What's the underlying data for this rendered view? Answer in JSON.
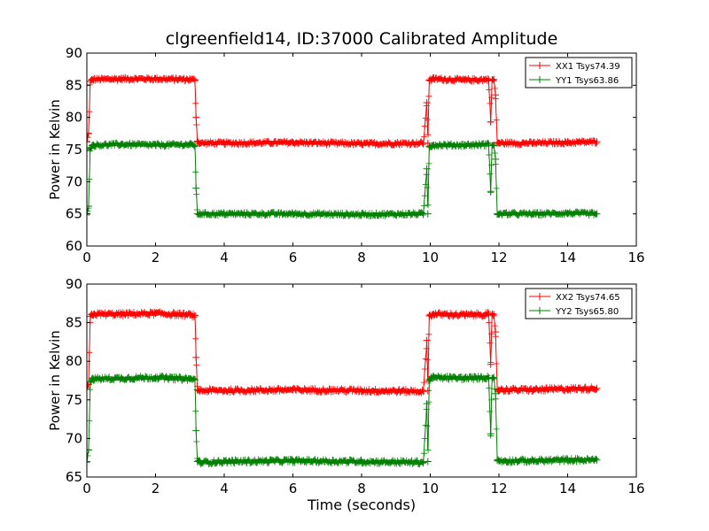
{
  "figure": {
    "title": "clgreenfield14, ID:37000 Calibrated Amplitude",
    "xlabel": "Time (seconds)"
  },
  "colors": {
    "xx": "#ff0000",
    "yy": "#008000",
    "frame": "#000000",
    "background": "#ffffff"
  },
  "chart_data": [
    {
      "type": "line",
      "title": "clgreenfield14, ID:37000 Calibrated Amplitude",
      "xlabel": "",
      "ylabel": "Power in Kelvin",
      "xlim": [
        0,
        16
      ],
      "ylim": [
        60,
        90
      ],
      "xticks": [
        0,
        2,
        4,
        6,
        8,
        10,
        12,
        14,
        16
      ],
      "yticks": [
        60,
        65,
        70,
        75,
        80,
        85,
        90
      ],
      "grid": false,
      "legend": "top-right",
      "series": [
        {
          "name": "XX1 Tsys74.39",
          "color": "#ff0000",
          "marker": "+",
          "x": [
            0.0,
            0.05,
            0.1,
            0.15,
            0.2,
            1.0,
            2.0,
            3.0,
            3.15,
            3.18,
            3.22,
            3.3,
            4.0,
            6.0,
            8.0,
            9.8,
            9.9,
            9.93,
            9.97,
            10.05,
            10.1,
            11.0,
            11.7,
            11.76,
            11.8,
            11.85,
            11.9,
            11.95,
            12.0,
            13.0,
            14.0,
            14.85
          ],
          "y": [
            76.2,
            77.5,
            85.6,
            85.8,
            85.9,
            86.0,
            86.0,
            85.9,
            85.8,
            80.0,
            76.2,
            76.0,
            76.0,
            76.1,
            75.9,
            76.0,
            82.3,
            76.0,
            85.8,
            85.9,
            86.0,
            85.8,
            85.9,
            79.3,
            85.8,
            85.9,
            83.5,
            76.1,
            76.0,
            76.0,
            76.1,
            76.2
          ]
        },
        {
          "name": "YY1 Tsys63.86",
          "color": "#008000",
          "marker": "+",
          "x": [
            0.0,
            0.05,
            0.1,
            0.15,
            0.2,
            1.0,
            2.0,
            3.0,
            3.15,
            3.18,
            3.22,
            3.3,
            4.0,
            6.0,
            8.0,
            9.8,
            9.9,
            9.93,
            9.97,
            10.05,
            10.1,
            11.0,
            11.7,
            11.76,
            11.8,
            11.85,
            11.9,
            11.95,
            12.0,
            13.0,
            14.0,
            14.85
          ],
          "y": [
            65.0,
            66.2,
            75.3,
            75.6,
            75.7,
            75.8,
            75.7,
            75.8,
            75.6,
            69.0,
            65.0,
            65.0,
            65.0,
            65.0,
            64.9,
            65.0,
            72.0,
            65.0,
            75.5,
            75.6,
            75.7,
            75.7,
            75.8,
            68.5,
            75.6,
            75.7,
            73.5,
            65.0,
            65.0,
            65.0,
            65.1,
            65.0
          ]
        }
      ]
    },
    {
      "type": "line",
      "title": "",
      "xlabel": "Time (seconds)",
      "ylabel": "Power in Kelvin",
      "xlim": [
        0,
        16
      ],
      "ylim": [
        65,
        90
      ],
      "xticks": [
        0,
        2,
        4,
        6,
        8,
        10,
        12,
        14,
        16
      ],
      "yticks": [
        65,
        70,
        75,
        80,
        85,
        90
      ],
      "grid": false,
      "legend": "top-right",
      "series": [
        {
          "name": "XX2 Tsys74.65",
          "color": "#ff0000",
          "marker": "+",
          "x": [
            0.0,
            0.05,
            0.1,
            0.15,
            0.2,
            1.0,
            2.0,
            3.0,
            3.15,
            3.18,
            3.22,
            3.3,
            4.0,
            6.0,
            8.0,
            9.8,
            9.9,
            9.93,
            9.97,
            10.05,
            10.1,
            11.0,
            11.7,
            11.76,
            11.8,
            11.85,
            11.9,
            11.95,
            12.0,
            13.0,
            14.0,
            14.85
          ],
          "y": [
            76.4,
            77.0,
            85.8,
            86.0,
            86.1,
            86.1,
            86.2,
            86.0,
            85.9,
            80.5,
            76.3,
            76.2,
            76.2,
            76.3,
            76.2,
            76.1,
            82.7,
            76.2,
            85.9,
            86.0,
            86.1,
            86.0,
            86.1,
            79.6,
            86.0,
            86.1,
            83.8,
            76.4,
            76.3,
            76.3,
            76.4,
            76.5
          ]
        },
        {
          "name": "YY2 Tsys65.80",
          "color": "#008000",
          "marker": "+",
          "x": [
            0.0,
            0.05,
            0.1,
            0.15,
            0.2,
            1.0,
            2.0,
            3.0,
            3.15,
            3.18,
            3.22,
            3.3,
            4.0,
            6.0,
            8.0,
            9.8,
            9.9,
            9.93,
            9.97,
            10.05,
            10.1,
            11.0,
            11.7,
            11.76,
            11.8,
            11.85,
            11.9,
            11.95,
            12.0,
            13.0,
            14.0,
            14.85
          ],
          "y": [
            67.0,
            68.5,
            77.3,
            77.6,
            77.7,
            77.8,
            77.9,
            77.7,
            77.6,
            71.0,
            67.0,
            66.9,
            67.0,
            67.1,
            67.0,
            66.9,
            74.5,
            67.0,
            77.6,
            77.8,
            77.9,
            77.8,
            77.9,
            70.6,
            77.8,
            77.9,
            75.8,
            67.2,
            67.1,
            67.1,
            67.2,
            67.2
          ]
        }
      ]
    }
  ]
}
